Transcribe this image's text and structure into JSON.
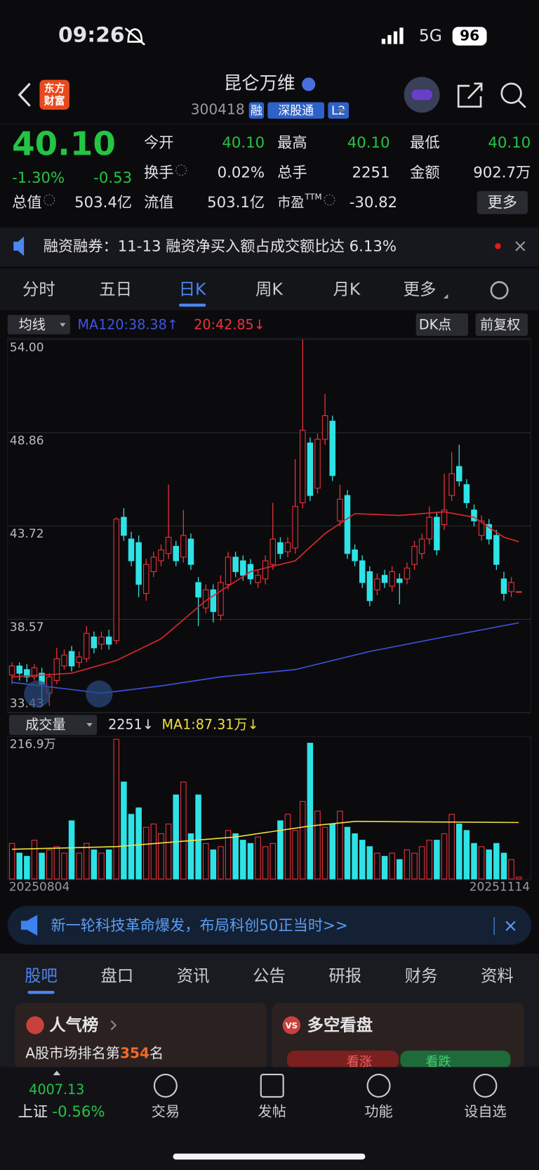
{
  "status": {
    "time": "09:26",
    "network": "5G",
    "battery": "96"
  },
  "header": {
    "logo": [
      "东方",
      "财富"
    ],
    "name": "昆仑万维",
    "code": "300418",
    "badges": [
      "融",
      "深股通",
      "L2"
    ]
  },
  "quote": {
    "price": "40.10",
    "percent": "-1.30%",
    "change": "-0.53",
    "fields": [
      {
        "label": "今开",
        "value": "40.10"
      },
      {
        "label": "最高",
        "value": "40.10"
      },
      {
        "label": "最低",
        "value": "40.10"
      },
      {
        "label": "换手",
        "value": "0.02%"
      },
      {
        "label": "总手",
        "value": "2251"
      },
      {
        "label": "金额",
        "value": "902.7万"
      },
      {
        "label": "总值",
        "value": "503.4亿"
      },
      {
        "label": "流值",
        "value": "503.1亿"
      },
      {
        "label": "市盈",
        "sup": "TTM",
        "value": "-30.82"
      }
    ],
    "more": "更多"
  },
  "notice": "融资融券：11-13 融资净买入额占成交额比达 6.13%",
  "tabs": {
    "items": [
      "分时",
      "五日",
      "日K",
      "周K",
      "月K",
      "更多"
    ],
    "active": 2
  },
  "toolbar": {
    "ma_select": "均线",
    "ma120": "MA120:38.38↑",
    "ma20": "20:42.85↓",
    "dk": "DK点",
    "adjust": "前复权"
  },
  "volume_toolbar": {
    "select": "成交量",
    "current": "2251↓",
    "ma": "MA1:87.31万↓"
  },
  "chart_data": {
    "type": "candlestick",
    "up_color": "#f0323c",
    "down_color": "#2ee3e6",
    "ylim": [
      33.43,
      54.0
    ],
    "yticks": [
      {
        "value": 54.0,
        "label": "54.00"
      },
      48.86,
      43.72,
      38.57,
      {
        "value": 33.43,
        "label": "33.43"
      }
    ],
    "candle_fields": [
      "open",
      "high",
      "low",
      "close"
    ],
    "candles": [
      [
        35.5,
        36.2,
        35.0,
        36.0
      ],
      [
        36.0,
        36.2,
        35.2,
        35.6
      ],
      [
        35.8,
        36.1,
        35.1,
        35.4
      ],
      [
        35.4,
        36.1,
        35.2,
        35.9
      ],
      [
        35.6,
        35.9,
        34.2,
        35.0
      ],
      [
        34.5,
        35.6,
        33.8,
        35.4
      ],
      [
        35.2,
        37.0,
        35.0,
        36.4
      ],
      [
        36.0,
        36.9,
        35.8,
        36.6
      ],
      [
        36.8,
        37.1,
        35.7,
        36.0
      ],
      [
        36.2,
        36.8,
        35.9,
        36.5
      ],
      [
        36.4,
        38.2,
        36.2,
        37.8
      ],
      [
        37.6,
        37.9,
        36.7,
        37.0
      ],
      [
        37.2,
        37.9,
        36.9,
        37.6
      ],
      [
        37.6,
        38.0,
        36.9,
        37.2
      ],
      [
        37.4,
        44.2,
        37.2,
        44.1
      ],
      [
        44.2,
        44.7,
        42.9,
        43.2
      ],
      [
        43.0,
        43.4,
        41.5,
        41.8
      ],
      [
        42.8,
        43.2,
        39.8,
        40.5
      ],
      [
        40.0,
        41.9,
        39.6,
        41.6
      ],
      [
        41.2,
        42.3,
        40.9,
        42.0
      ],
      [
        41.8,
        42.7,
        41.5,
        42.4
      ],
      [
        42.2,
        46.0,
        41.9,
        43.1
      ],
      [
        42.6,
        42.9,
        41.5,
        41.8
      ],
      [
        42.0,
        44.6,
        41.7,
        43.2
      ],
      [
        43.0,
        43.3,
        41.3,
        41.6
      ],
      [
        40.6,
        40.9,
        38.2,
        39.8
      ],
      [
        39.2,
        40.5,
        38.9,
        40.2
      ],
      [
        40.2,
        40.5,
        38.4,
        39.0
      ],
      [
        38.8,
        41.0,
        38.5,
        40.6
      ],
      [
        40.5,
        42.3,
        40.2,
        42.0
      ],
      [
        42.0,
        42.3,
        40.9,
        41.2
      ],
      [
        41.8,
        42.1,
        40.7,
        41.0
      ],
      [
        41.6,
        41.9,
        40.5,
        40.8
      ],
      [
        40.6,
        41.3,
        40.3,
        41.0
      ],
      [
        40.8,
        42.1,
        40.5,
        41.8
      ],
      [
        41.6,
        45.0,
        41.3,
        43.0
      ],
      [
        42.8,
        43.1,
        41.9,
        42.2
      ],
      [
        42.3,
        43.1,
        42.0,
        42.8
      ],
      [
        42.5,
        47.4,
        42.2,
        44.8
      ],
      [
        45.0,
        54.0,
        44.7,
        49.0
      ],
      [
        48.3,
        48.6,
        45.1,
        45.4
      ],
      [
        45.8,
        48.8,
        45.5,
        48.5
      ],
      [
        48.5,
        51.0,
        48.2,
        49.8
      ],
      [
        49.5,
        49.8,
        46.2,
        46.5
      ],
      [
        44.0,
        46.0,
        43.7,
        45.2
      ],
      [
        45.4,
        45.7,
        41.9,
        42.2
      ],
      [
        42.4,
        42.7,
        41.5,
        41.8
      ],
      [
        41.8,
        42.1,
        40.3,
        40.6
      ],
      [
        41.2,
        41.5,
        39.3,
        39.6
      ],
      [
        40.2,
        41.1,
        39.9,
        40.8
      ],
      [
        41.0,
        41.3,
        40.3,
        40.6
      ],
      [
        40.4,
        41.5,
        40.1,
        41.2
      ],
      [
        40.8,
        41.1,
        39.4,
        40.6
      ],
      [
        40.8,
        41.7,
        40.5,
        41.4
      ],
      [
        41.6,
        42.9,
        41.3,
        42.6
      ],
      [
        42.2,
        43.3,
        41.9,
        43.0
      ],
      [
        43.0,
        44.8,
        42.7,
        44.2
      ],
      [
        44.2,
        44.5,
        42.1,
        42.4
      ],
      [
        43.8,
        46.6,
        43.5,
        44.6
      ],
      [
        45.4,
        47.8,
        45.1,
        46.6
      ],
      [
        47.0,
        48.2,
        45.9,
        46.2
      ],
      [
        46.0,
        46.3,
        44.7,
        45.0
      ],
      [
        44.6,
        44.9,
        43.7,
        44.0
      ],
      [
        43.2,
        44.3,
        42.9,
        44.0
      ],
      [
        43.8,
        44.1,
        42.7,
        43.0
      ],
      [
        43.2,
        43.5,
        41.3,
        41.6
      ],
      [
        40.8,
        41.2,
        39.6,
        40.0
      ],
      [
        40.1,
        40.9,
        39.8,
        40.6
      ],
      [
        40.1,
        40.1,
        40.1,
        40.1
      ]
    ],
    "ma_lines": [
      {
        "name": "MA20",
        "color": "#d8262c",
        "x": [
          0,
          8,
          14,
          20,
          26,
          32,
          38,
          42,
          46,
          52,
          58,
          62,
          66,
          68
        ],
        "values": [
          35.4,
          35.6,
          36.3,
          37.5,
          39.6,
          41.2,
          41.8,
          43.3,
          44.4,
          44.3,
          44.5,
          44.2,
          43.1,
          42.85
        ]
      },
      {
        "name": "MA120",
        "color": "#3b4fd8",
        "x": [
          0,
          12,
          20,
          28,
          38,
          48,
          58,
          68
        ],
        "values": [
          35.1,
          34.5,
          34.9,
          35.4,
          35.8,
          36.8,
          37.6,
          38.38
        ]
      }
    ],
    "volume": {
      "ylim": [
        0,
        216.9
      ],
      "top_label": "216.9万",
      "values": [
        55,
        40,
        35,
        60,
        40,
        45,
        50,
        40,
        90,
        40,
        55,
        45,
        40,
        45,
        216,
        150,
        100,
        110,
        80,
        85,
        70,
        85,
        130,
        150,
        70,
        130,
        55,
        45,
        50,
        75,
        70,
        60,
        55,
        65,
        50,
        55,
        90,
        100,
        75,
        120,
        210,
        105,
        80,
        85,
        105,
        80,
        70,
        60,
        50,
        40,
        35,
        40,
        30,
        45,
        40,
        50,
        60,
        60,
        70,
        100,
        85,
        75,
        55,
        50,
        45,
        55,
        40,
        30,
        3
      ],
      "ma": {
        "color": "#f0e040",
        "x": [
          0,
          14,
          30,
          40,
          46,
          68
        ],
        "values": [
          46,
          50,
          65,
          82,
          89,
          87.31
        ]
      }
    },
    "date_start": "20250804",
    "date_end": "20251114"
  },
  "ad": "新一轮科技革命爆发，布局科创50正当时>>",
  "section_tabs": {
    "items": [
      "股吧",
      "盘口",
      "资讯",
      "公告",
      "研报",
      "财务",
      "资料"
    ],
    "active": 0
  },
  "cards": {
    "popular": {
      "title": "人气榜",
      "prefix": "A股市场排名第",
      "rank": "354",
      "suffix": "名"
    },
    "sentiment": {
      "title": "多空看盘",
      "bull": "看涨",
      "bear": "看跌",
      "icon": "VS"
    }
  },
  "bottom_nav": {
    "index_value": "4007.13",
    "index_name": "上证",
    "index_change": "-0.56%",
    "items": [
      "交易",
      "发帖",
      "功能",
      "设自选"
    ]
  }
}
